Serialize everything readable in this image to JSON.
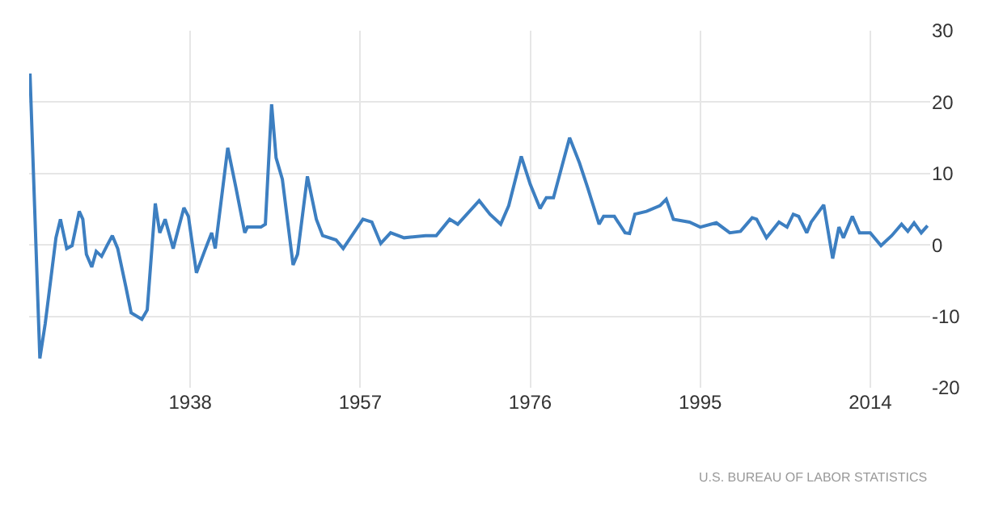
{
  "chart_data": {
    "type": "line",
    "legend": false,
    "grid": true,
    "marker": "none",
    "line_style": "solid",
    "xlim": [
      1920,
      2020.7
    ],
    "xticks": [
      1938,
      1957,
      1976,
      1995,
      2014
    ],
    "ylim": [
      -20,
      30
    ],
    "yticks": [
      -20,
      -10,
      0,
      10,
      20,
      30
    ],
    "annotations": [
      "U.S. BUREAU OF LABOR STATISTICS"
    ],
    "series": [
      {
        "color": "#3d7fc1",
        "x": [
          1920.1,
          1921.2,
          1921.8,
          1922.4,
          1923.0,
          1923.5,
          1924.2,
          1924.8,
          1925.6,
          1926.0,
          1926.4,
          1927.0,
          1927.5,
          1928.1,
          1928.7,
          1929.3,
          1929.9,
          1930.8,
          1931.4,
          1932.6,
          1933.2,
          1934.1,
          1934.6,
          1935.2,
          1936.1,
          1937.3,
          1937.8,
          1938.7,
          1939.6,
          1940.4,
          1940.8,
          1942.2,
          1943.1,
          1944.1,
          1944.4,
          1945.9,
          1946.4,
          1947.1,
          1947.6,
          1948.3,
          1949.5,
          1950.0,
          1951.1,
          1952.1,
          1952.8,
          1954.3,
          1955.1,
          1957.3,
          1958.3,
          1959.3,
          1960.4,
          1961.9,
          1964.3,
          1965.5,
          1967.0,
          1967.9,
          1970.3,
          1971.5,
          1972.7,
          1973.6,
          1975.0,
          1976.0,
          1977.1,
          1977.8,
          1978.6,
          1980.4,
          1981.5,
          1982.4,
          1983.7,
          1984.2,
          1985.4,
          1986.6,
          1987.1,
          1987.7,
          1989.0,
          1990.5,
          1991.2,
          1992.0,
          1993.8,
          1995.0,
          1996.8,
          1998.3,
          1999.5,
          2000.8,
          2001.3,
          2002.4,
          2003.8,
          2004.7,
          2005.4,
          2006.0,
          2006.9,
          2007.4,
          2008.8,
          2009.8,
          2010.5,
          2011.0,
          2012.0,
          2012.8,
          2014.0,
          2015.2,
          2016.4,
          2017.5,
          2018.2,
          2018.9,
          2019.7,
          2020.4
        ],
        "values": [
          24.0,
          -15.9,
          -11,
          -5,
          1,
          3.6,
          -0.5,
          -0.1,
          4.7,
          3.6,
          -1.3,
          -3.1,
          -0.9,
          -1.6,
          -0.1,
          1.3,
          -0.5,
          -5.8,
          -9.5,
          -10.4,
          -9.1,
          5.8,
          1.7,
          3.6,
          -0.5,
          5.2,
          4,
          -3.9,
          -0.9,
          1.7,
          -0.5,
          13.6,
          8.1,
          1.7,
          2.5,
          2.5,
          2.9,
          19.7,
          12.2,
          9.2,
          -2.8,
          -1.3,
          9.6,
          3.6,
          1.3,
          0.7,
          -0.5,
          3.6,
          3.2,
          0.2,
          1.7,
          1,
          1.3,
          1.3,
          3.6,
          2.9,
          6.2,
          4.3,
          2.9,
          5.5,
          12.4,
          8.5,
          5.1,
          6.6,
          6.6,
          15.0,
          11.5,
          8.1,
          2.9,
          4,
          4,
          1.7,
          1.6,
          4.3,
          4.7,
          5.5,
          6.4,
          3.6,
          3.2,
          2.5,
          3.1,
          1.7,
          1.9,
          3.8,
          3.6,
          1,
          3.2,
          2.5,
          4.3,
          4,
          1.7,
          3.2,
          5.6,
          -1.9,
          2.5,
          1,
          4,
          1.7,
          1.7,
          -0.1,
          1.3,
          2.9,
          1.9,
          3.1,
          1.7,
          2.7
        ]
      }
    ]
  }
}
